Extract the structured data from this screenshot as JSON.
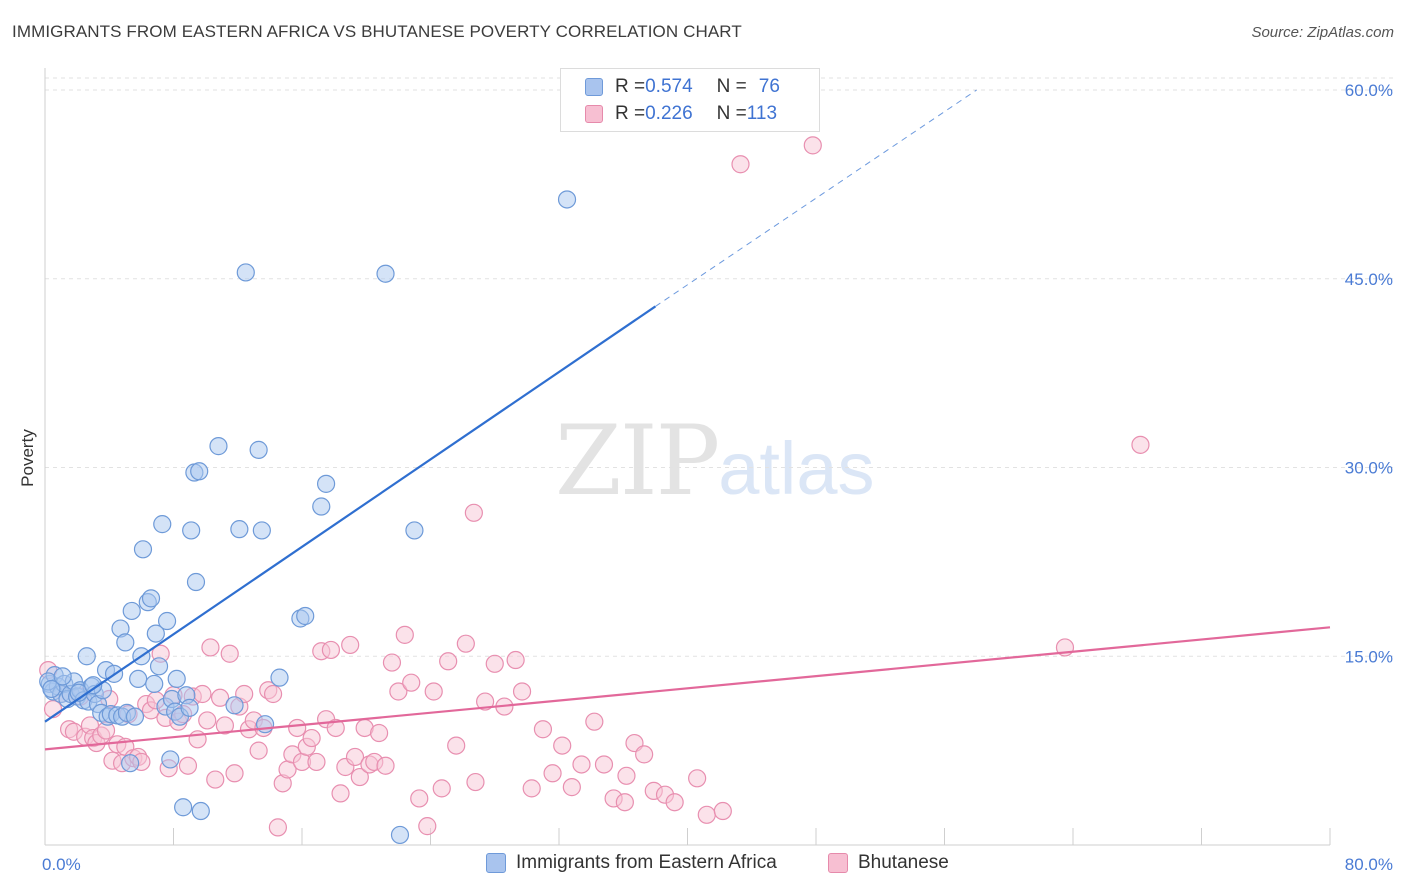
{
  "title": "IMMIGRANTS FROM EASTERN AFRICA VS BHUTANESE POVERTY CORRELATION CHART",
  "source": "Source: ZipAtlas.com",
  "watermark": {
    "zip": "ZIP",
    "atlas": "atlas"
  },
  "legend": {
    "r_label": "R = ",
    "n_label": "N = ",
    "rows": [
      {
        "r": "0.574",
        "n": "76",
        "color": "#a9c4ee",
        "border": "#6f9ad9"
      },
      {
        "r": "0.226",
        "n": "113",
        "color": "#f7bfd2",
        "border": "#e68aab"
      }
    ]
  },
  "colors": {
    "blue_fill": "#aac8f0",
    "blue_stroke": "#6e9ad8",
    "blue_line": "#2f6fd0",
    "pink_fill": "#f8c6d6",
    "pink_stroke": "#e88fb0",
    "pink_line": "#e2689a",
    "grid": "#e2e2e2"
  },
  "chart_data": {
    "type": "scatter",
    "title": "IMMIGRANTS FROM EASTERN AFRICA VS BHUTANESE POVERTY CORRELATION CHART",
    "xlabel": "",
    "ylabel": "Poverty",
    "xlim": [
      0,
      80
    ],
    "ylim": [
      0,
      60
    ],
    "x_ticks": [
      "0.0%",
      "80.0%"
    ],
    "y_ticks": [
      {
        "value": 15,
        "label": "15.0%"
      },
      {
        "value": 30,
        "label": "30.0%"
      },
      {
        "value": 45,
        "label": "45.0%"
      },
      {
        "value": 60,
        "label": "60.0%"
      }
    ],
    "grid": true,
    "legend_position": "top-center",
    "series": [
      {
        "name": "Immigrants from Eastern Africa",
        "color": "#aac8f0",
        "trend": {
          "x0": 0,
          "y0": 9.8,
          "x1": 38,
          "y1": 42.8,
          "dash_to_x": 58,
          "dash_to_y": 60
        },
        "points": [
          [
            0.3,
            12.8
          ],
          [
            0.5,
            12.2
          ],
          [
            0.6,
            13.5
          ],
          [
            0.8,
            12.6
          ],
          [
            1.0,
            12.0
          ],
          [
            1.2,
            12.8
          ],
          [
            1.4,
            11.6
          ],
          [
            1.6,
            12.0
          ],
          [
            1.8,
            13.0
          ],
          [
            2.0,
            11.8
          ],
          [
            2.2,
            12.3
          ],
          [
            2.4,
            11.5
          ],
          [
            2.6,
            15.0
          ],
          [
            2.7,
            11.4
          ],
          [
            2.9,
            12.6
          ],
          [
            3.1,
            12.0
          ],
          [
            3.3,
            11.2
          ],
          [
            3.5,
            10.5
          ],
          [
            3.6,
            12.3
          ],
          [
            3.8,
            13.9
          ],
          [
            3.9,
            10.2
          ],
          [
            4.1,
            10.4
          ],
          [
            4.3,
            13.6
          ],
          [
            4.5,
            10.3
          ],
          [
            4.7,
            17.2
          ],
          [
            4.8,
            10.2
          ],
          [
            5.0,
            16.1
          ],
          [
            5.1,
            10.5
          ],
          [
            5.3,
            6.5
          ],
          [
            5.4,
            18.6
          ],
          [
            5.6,
            10.2
          ],
          [
            5.8,
            13.2
          ],
          [
            6.0,
            15.0
          ],
          [
            6.1,
            23.5
          ],
          [
            6.4,
            19.3
          ],
          [
            6.6,
            19.6
          ],
          [
            6.8,
            12.8
          ],
          [
            6.9,
            16.8
          ],
          [
            7.1,
            14.2
          ],
          [
            7.3,
            25.5
          ],
          [
            7.5,
            11.0
          ],
          [
            7.6,
            17.8
          ],
          [
            7.8,
            6.8
          ],
          [
            7.9,
            11.6
          ],
          [
            8.1,
            10.6
          ],
          [
            8.2,
            13.2
          ],
          [
            8.4,
            10.2
          ],
          [
            8.6,
            3.0
          ],
          [
            8.8,
            11.9
          ],
          [
            9.0,
            10.9
          ],
          [
            9.1,
            25.0
          ],
          [
            9.3,
            29.6
          ],
          [
            9.4,
            20.9
          ],
          [
            9.6,
            29.7
          ],
          [
            9.7,
            2.7
          ],
          [
            10.8,
            31.7
          ],
          [
            11.8,
            11.1
          ],
          [
            12.1,
            25.1
          ],
          [
            12.5,
            45.5
          ],
          [
            13.3,
            31.4
          ],
          [
            13.5,
            25.0
          ],
          [
            13.7,
            9.6
          ],
          [
            14.6,
            13.3
          ],
          [
            15.9,
            18.0
          ],
          [
            16.2,
            18.2
          ],
          [
            17.2,
            26.9
          ],
          [
            17.5,
            28.7
          ],
          [
            21.2,
            45.4
          ],
          [
            22.1,
            0.8
          ],
          [
            23.0,
            25.0
          ],
          [
            32.5,
            51.3
          ],
          [
            0.2,
            13.0
          ],
          [
            0.4,
            12.4
          ],
          [
            1.1,
            13.4
          ],
          [
            2.1,
            12.1
          ],
          [
            3.0,
            12.7
          ]
        ]
      },
      {
        "name": "Bhutanese",
        "color": "#f8c6d6",
        "trend": {
          "x0": 0,
          "y0": 7.6,
          "x1": 80,
          "y1": 17.3
        },
        "points": [
          [
            0.2,
            13.9
          ],
          [
            0.5,
            10.8
          ],
          [
            1.0,
            12.0
          ],
          [
            1.5,
            9.2
          ],
          [
            1.8,
            9.0
          ],
          [
            2.2,
            11.8
          ],
          [
            2.5,
            8.6
          ],
          [
            2.8,
            9.5
          ],
          [
            3.0,
            8.5
          ],
          [
            3.2,
            8.1
          ],
          [
            3.5,
            8.7
          ],
          [
            3.8,
            9.1
          ],
          [
            4.0,
            11.6
          ],
          [
            4.2,
            6.7
          ],
          [
            4.5,
            8.0
          ],
          [
            4.8,
            6.5
          ],
          [
            5.0,
            7.8
          ],
          [
            5.2,
            10.4
          ],
          [
            5.5,
            6.9
          ],
          [
            5.8,
            7.0
          ],
          [
            6.0,
            6.6
          ],
          [
            6.3,
            11.2
          ],
          [
            6.6,
            10.7
          ],
          [
            6.9,
            11.5
          ],
          [
            7.2,
            15.2
          ],
          [
            7.5,
            10.1
          ],
          [
            7.7,
            6.1
          ],
          [
            8.0,
            11.9
          ],
          [
            8.3,
            9.8
          ],
          [
            8.6,
            10.4
          ],
          [
            8.9,
            6.3
          ],
          [
            9.2,
            11.8
          ],
          [
            9.5,
            8.4
          ],
          [
            9.8,
            12.0
          ],
          [
            10.1,
            9.9
          ],
          [
            10.3,
            15.7
          ],
          [
            10.6,
            5.2
          ],
          [
            10.9,
            11.7
          ],
          [
            11.2,
            9.5
          ],
          [
            11.5,
            15.2
          ],
          [
            11.8,
            5.7
          ],
          [
            12.1,
            11.0
          ],
          [
            12.4,
            12.0
          ],
          [
            12.7,
            9.2
          ],
          [
            13.0,
            9.9
          ],
          [
            13.3,
            7.5
          ],
          [
            13.6,
            9.3
          ],
          [
            13.9,
            12.3
          ],
          [
            14.2,
            12.0
          ],
          [
            14.5,
            1.4
          ],
          [
            14.8,
            4.9
          ],
          [
            15.1,
            6.0
          ],
          [
            15.4,
            7.2
          ],
          [
            15.7,
            9.3
          ],
          [
            16.0,
            6.6
          ],
          [
            16.3,
            7.8
          ],
          [
            16.6,
            8.5
          ],
          [
            16.9,
            6.6
          ],
          [
            17.2,
            15.4
          ],
          [
            17.5,
            10.0
          ],
          [
            17.8,
            15.5
          ],
          [
            18.1,
            9.3
          ],
          [
            18.4,
            4.1
          ],
          [
            18.7,
            6.2
          ],
          [
            19.0,
            15.9
          ],
          [
            19.3,
            7.0
          ],
          [
            19.6,
            5.4
          ],
          [
            19.9,
            9.3
          ],
          [
            20.2,
            6.4
          ],
          [
            20.5,
            6.6
          ],
          [
            20.8,
            8.9
          ],
          [
            21.2,
            6.3
          ],
          [
            21.6,
            14.5
          ],
          [
            22.0,
            12.2
          ],
          [
            22.4,
            16.7
          ],
          [
            22.8,
            12.9
          ],
          [
            23.3,
            3.7
          ],
          [
            23.8,
            1.5
          ],
          [
            24.2,
            12.2
          ],
          [
            24.7,
            4.5
          ],
          [
            25.1,
            14.6
          ],
          [
            25.6,
            7.9
          ],
          [
            26.2,
            16.0
          ],
          [
            26.8,
            5.0
          ],
          [
            27.4,
            11.4
          ],
          [
            28.0,
            14.4
          ],
          [
            28.6,
            11.0
          ],
          [
            29.3,
            14.7
          ],
          [
            29.7,
            12.2
          ],
          [
            30.3,
            4.5
          ],
          [
            31.0,
            9.2
          ],
          [
            31.6,
            5.7
          ],
          [
            32.2,
            7.9
          ],
          [
            32.8,
            4.6
          ],
          [
            33.4,
            6.4
          ],
          [
            34.2,
            9.8
          ],
          [
            34.8,
            6.4
          ],
          [
            35.4,
            3.7
          ],
          [
            36.1,
            3.4
          ],
          [
            36.7,
            8.1
          ],
          [
            37.3,
            7.2
          ],
          [
            37.9,
            4.3
          ],
          [
            38.6,
            4.0
          ],
          [
            39.2,
            3.4
          ],
          [
            40.6,
            5.3
          ],
          [
            41.2,
            2.4
          ],
          [
            42.2,
            2.7
          ],
          [
            43.3,
            54.1
          ],
          [
            26.7,
            26.4
          ],
          [
            63.5,
            15.7
          ],
          [
            68.2,
            31.8
          ],
          [
            47.8,
            55.6
          ],
          [
            36.2,
            5.5
          ]
        ]
      }
    ]
  },
  "bottom_legend": [
    {
      "label": "Immigrants from Eastern Africa"
    },
    {
      "label": "Bhutanese"
    }
  ]
}
